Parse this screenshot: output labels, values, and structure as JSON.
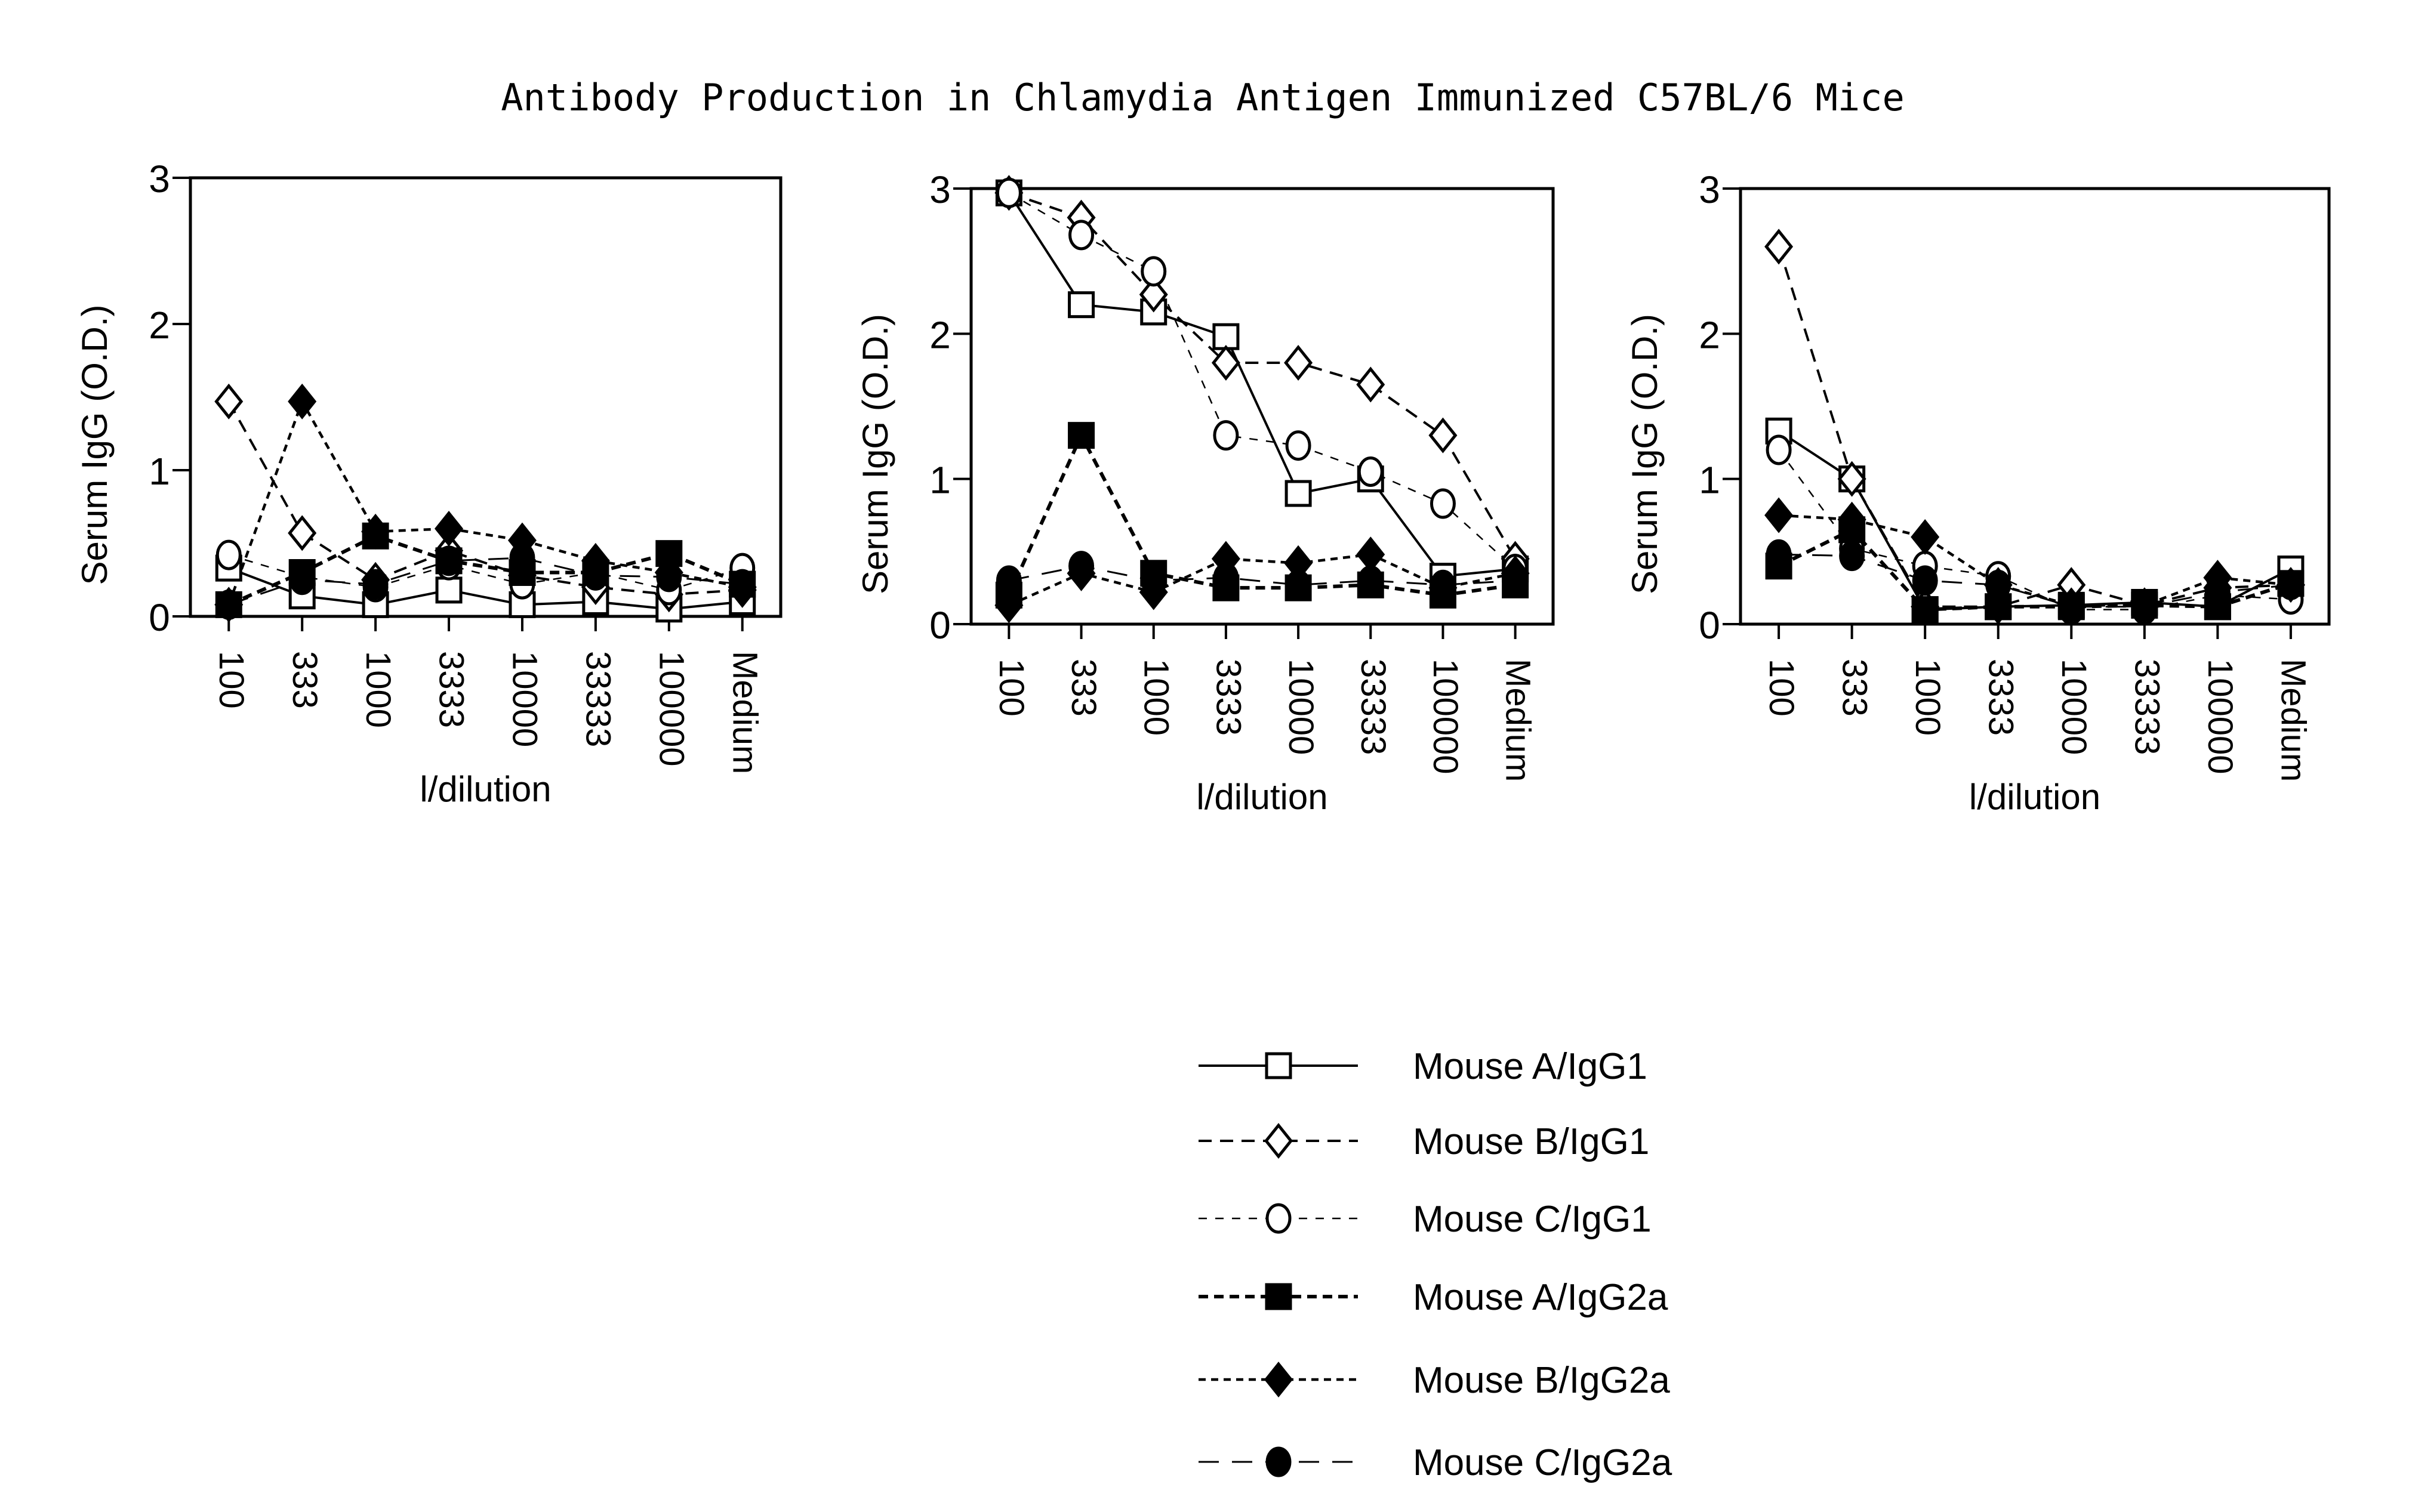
{
  "chart_data": {
    "title": "Antibody Production in Chlamydia Antigen Immunized C57BL/6 Mice",
    "type": "line",
    "legend": {
      "placement": "bottom-center",
      "entries": [
        {
          "name": "Mouse A/IgG1",
          "marker": "open-square",
          "line": "solid"
        },
        {
          "name": "Mouse B/IgG1",
          "marker": "open-diamond",
          "line": "dashed"
        },
        {
          "name": "Mouse C/IgG1",
          "marker": "open-circle",
          "line": "fine-dashed"
        },
        {
          "name": "Mouse A/IgG2a",
          "marker": "filled-square",
          "line": "dashed-bold"
        },
        {
          "name": "Mouse B/IgG2a",
          "marker": "filled-diamond",
          "line": "short-dashed"
        },
        {
          "name": "Mouse C/IgG2a",
          "marker": "filled-circle",
          "line": "long-dashed"
        }
      ]
    },
    "panels": [
      {
        "xlabel": "l/dilution",
        "ylabel": "Serum IgG (O.D.)",
        "ylim": [
          0,
          3
        ],
        "yticks": [
          "0",
          "1",
          "2",
          "3"
        ],
        "categories": [
          "100",
          "333",
          "1000",
          "3333",
          "10000",
          "33333",
          "100000",
          "Medium"
        ],
        "series": [
          {
            "name": "Mouse A/IgG1",
            "values": [
              0.33,
              0.14,
              0.08,
              0.18,
              0.08,
              0.1,
              0.05,
              0.1
            ]
          },
          {
            "name": "Mouse B/IgG1",
            "values": [
              1.47,
              0.57,
              0.25,
              0.45,
              0.28,
              0.2,
              0.15,
              0.18
            ]
          },
          {
            "name": "Mouse C/IgG1",
            "values": [
              0.42,
              0.27,
              0.2,
              0.35,
              0.22,
              0.3,
              0.18,
              0.33
            ]
          },
          {
            "name": "Mouse A/IgG2a",
            "values": [
              0.08,
              0.3,
              0.55,
              0.38,
              0.3,
              0.3,
              0.43,
              0.22
            ]
          },
          {
            "name": "Mouse B/IgG2a",
            "values": [
              0.08,
              1.47,
              0.58,
              0.6,
              0.52,
              0.38,
              0.3,
              0.2
            ]
          },
          {
            "name": "Mouse C/IgG2a",
            "values": [
              0.08,
              0.25,
              0.22,
              0.38,
              0.4,
              0.28,
              0.27,
              0.22
            ]
          }
        ]
      },
      {
        "xlabel": "l/dilution",
        "ylabel": "Serum IgG (O.D.)",
        "ylim": [
          0,
          3
        ],
        "yticks": [
          "0",
          "1",
          "2",
          "3"
        ],
        "categories": [
          "100",
          "333",
          "1000",
          "3333",
          "10000",
          "33333",
          "100000",
          "Medium"
        ],
        "series": [
          {
            "name": "Mouse A/IgG1",
            "values": [
              2.97,
              2.2,
              2.15,
              1.98,
              0.9,
              1.0,
              0.33,
              0.38
            ]
          },
          {
            "name": "Mouse B/IgG1",
            "values": [
              2.97,
              2.8,
              2.27,
              1.8,
              1.8,
              1.65,
              1.3,
              0.45
            ]
          },
          {
            "name": "Mouse C/IgG1",
            "values": [
              2.97,
              2.68,
              2.43,
              1.3,
              1.23,
              1.05,
              0.83,
              0.38
            ]
          },
          {
            "name": "Mouse A/IgG2a",
            "values": [
              0.2,
              1.3,
              0.35,
              0.25,
              0.25,
              0.27,
              0.2,
              0.27
            ]
          },
          {
            "name": "Mouse B/IgG2a",
            "values": [
              0.13,
              0.35,
              0.22,
              0.45,
              0.42,
              0.48,
              0.25,
              0.35
            ]
          },
          {
            "name": "Mouse C/IgG2a",
            "values": [
              0.3,
              0.4,
              0.3,
              0.32,
              0.27,
              0.3,
              0.27,
              0.3
            ]
          }
        ]
      },
      {
        "xlabel": "l/dilution",
        "ylabel": "Serum IgG (O.D.)",
        "ylim": [
          0,
          3
        ],
        "yticks": [
          "0",
          "1",
          "2",
          "3"
        ],
        "categories": [
          "100",
          "333",
          "1000",
          "3333",
          "10000",
          "33333",
          "100000",
          "Medium"
        ],
        "series": [
          {
            "name": "Mouse A/IgG1",
            "values": [
              1.33,
              1.0,
              0.1,
              0.12,
              0.13,
              0.15,
              0.12,
              0.38
            ]
          },
          {
            "name": "Mouse B/IgG1",
            "values": [
              2.6,
              1.0,
              0.12,
              0.12,
              0.27,
              0.13,
              0.25,
              0.27
            ]
          },
          {
            "name": "Mouse C/IgG1",
            "values": [
              1.2,
              0.52,
              0.4,
              0.33,
              0.1,
              0.1,
              0.2,
              0.17
            ]
          },
          {
            "name": "Mouse A/IgG2a",
            "values": [
              0.4,
              0.65,
              0.1,
              0.12,
              0.12,
              0.13,
              0.12,
              0.28
            ]
          },
          {
            "name": "Mouse B/IgG2a",
            "values": [
              0.75,
              0.72,
              0.6,
              0.27,
              0.13,
              0.13,
              0.32,
              0.27
            ]
          },
          {
            "name": "Mouse C/IgG2a",
            "values": [
              0.48,
              0.47,
              0.3,
              0.27,
              0.12,
              0.12,
              0.22,
              0.27
            ]
          }
        ]
      }
    ]
  }
}
